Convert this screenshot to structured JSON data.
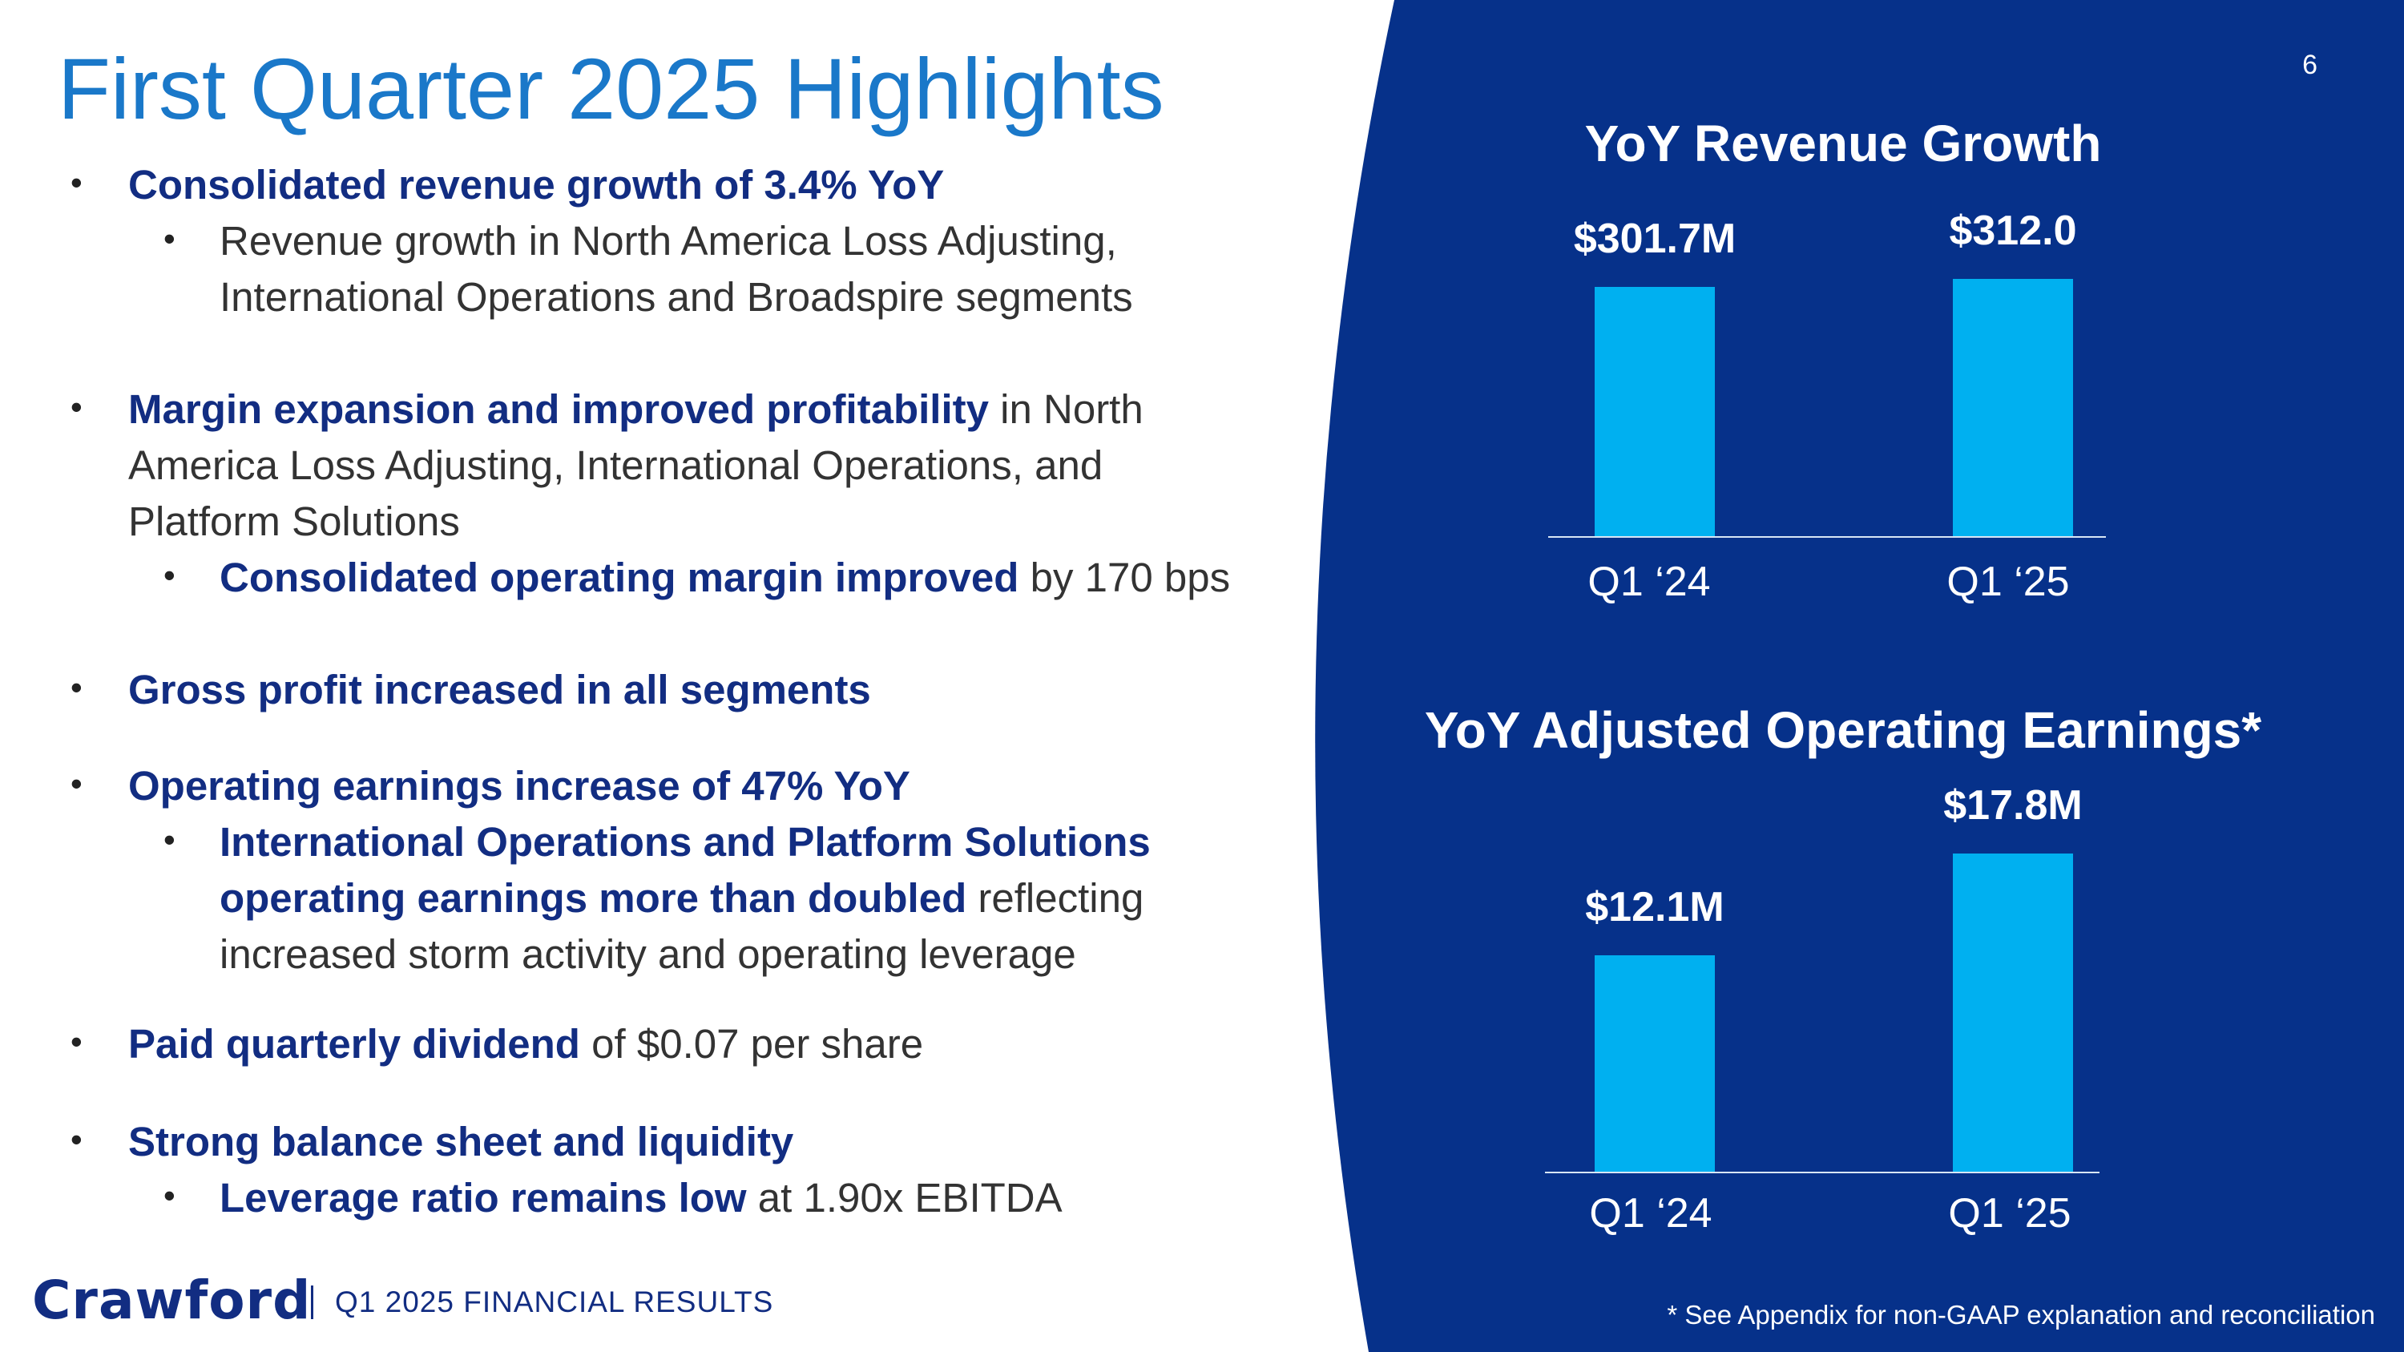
{
  "slide": {
    "title": "First Quarter 2025 Highlights",
    "page_number": "6",
    "panel_color": "#06318a",
    "accent_color": "#00b0f0",
    "title_color": "#1a78c9",
    "emphasis_color": "#122d82"
  },
  "bullets": [
    {
      "level": 1,
      "strong": "Consolidated revenue growth of 3.4% YoY",
      "rest": ""
    },
    {
      "level": 2,
      "strong": "",
      "rest": "Revenue growth in North America Loss Adjusting, International Operations and Broadspire segments"
    },
    {
      "level": 1,
      "strong": "Margin expansion and improved profitability",
      "rest": " in North America Loss Adjusting, International Operations, and Platform Solutions"
    },
    {
      "level": 2,
      "strong": "Consolidated operating margin improved",
      "rest": " by 170 bps"
    },
    {
      "level": 1,
      "strong": "Gross profit increased in all segments",
      "rest": ""
    },
    {
      "level": 1,
      "strong": "Operating earnings increase of 47% YoY",
      "rest": ""
    },
    {
      "level": 2,
      "strong": "International Operations and Platform Solutions operating earnings more than doubled",
      "rest": " reflecting increased storm activity and operating leverage"
    },
    {
      "level": 1,
      "strong": "Paid quarterly dividend",
      "rest": " of $0.07 per share"
    },
    {
      "level": 1,
      "strong": "Strong balance sheet and liquidity",
      "rest": ""
    },
    {
      "level": 2,
      "strong": "Leverage ratio remains low",
      "rest": " at 1.90x EBITDA"
    }
  ],
  "chart_data": [
    {
      "type": "bar",
      "title": "YoY Revenue Growth",
      "categories": [
        "Q1 ‘24",
        "Q1 ‘25"
      ],
      "values": [
        301.7,
        312.0
      ],
      "data_labels": [
        "$301.7M",
        "$312.0"
      ],
      "ylim": [
        0,
        330
      ],
      "unit": "$M",
      "grid": false
    },
    {
      "type": "bar",
      "title": "YoY Adjusted Operating Earnings*",
      "categories": [
        "Q1 ‘24",
        "Q1 ‘25"
      ],
      "values": [
        12.1,
        17.8
      ],
      "data_labels": [
        "$12.1M",
        "$17.8M"
      ],
      "ylim": [
        0,
        20
      ],
      "unit": "$M",
      "grid": false
    }
  ],
  "footer": {
    "logo": "Crawford",
    "text": "Q1 2025 FINANCIAL RESULTS",
    "footnote": "* See Appendix for non-GAAP explanation and reconciliation"
  }
}
